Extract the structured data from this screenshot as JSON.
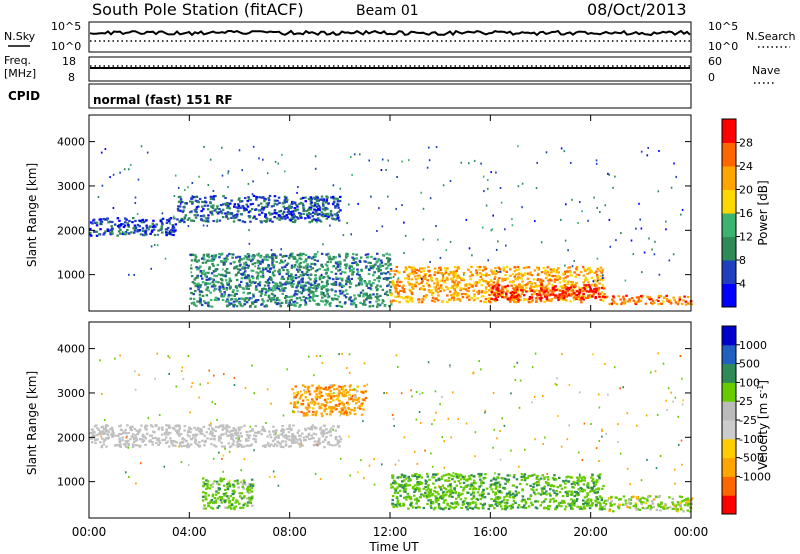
{
  "header": {
    "title": "South Pole Station (fitACF)",
    "beam": "Beam 01",
    "date": "08/Oct/2013"
  },
  "aux_panels": {
    "nsky": {
      "label": "N.Sky",
      "ticks": [
        "10^5",
        "10^0"
      ]
    },
    "nsearch": {
      "label": "N.Search",
      "ticks": [
        "10^5",
        "10^0"
      ]
    },
    "freq": {
      "label_line1": "Freq.",
      "label_line2": "[MHz]",
      "ticks": [
        "18",
        "8"
      ]
    },
    "nave": {
      "label": "Nave",
      "ticks": [
        "60",
        "0"
      ]
    },
    "cpid": {
      "label": "CPID",
      "value": "normal (fast) 151 RF"
    }
  },
  "colors": {
    "power_scale": [
      "#0000ff",
      "#1f3fbf",
      "#2e8b57",
      "#3cb371",
      "#ffd700",
      "#ffa500",
      "#ff6600",
      "#ff0000"
    ],
    "velocity_scale": [
      "#ff0000",
      "#ff6600",
      "#ffa500",
      "#ffcc00",
      "#cccccc",
      "#bbbbbb",
      "#66cc00",
      "#2e8b57",
      "#1f5fbf",
      "#0000cc"
    ],
    "ground_scatter": "#c0c0c0"
  },
  "chart_data": [
    {
      "type": "heatmap",
      "title": "",
      "xlabel": "Time UT",
      "ylabel": "Slant Range [km]",
      "xlim": [
        "00:00",
        "24:00"
      ],
      "ylim": [
        180,
        4600
      ],
      "x_ticks": [
        "00:00",
        "04:00",
        "08:00",
        "12:00",
        "16:00",
        "20:00",
        "00:00"
      ],
      "y_ticks": [
        1000,
        2000,
        3000,
        4000
      ],
      "colorbar": {
        "label": "Power [dB]",
        "range": [
          0,
          32
        ],
        "ticks": [
          4,
          8,
          12,
          16,
          20,
          24,
          28
        ]
      },
      "features": [
        {
          "name": "early F-region band",
          "x": [
            0,
            3.5
          ],
          "y": [
            1900,
            2300
          ],
          "level_db": 6
        },
        {
          "name": "morning oblique band",
          "x": [
            3.5,
            10
          ],
          "y": [
            2200,
            2800
          ],
          "level_db": 7
        },
        {
          "name": "low range echoes",
          "x": [
            4,
            12
          ],
          "y": [
            300,
            1500
          ],
          "level_db": 10
        },
        {
          "name": "afternoon main band",
          "x": [
            12,
            20.5
          ],
          "y": [
            400,
            1200
          ],
          "level_db": 22
        },
        {
          "name": "peak power patch",
          "x": [
            16,
            20.5
          ],
          "y": [
            450,
            800
          ],
          "level_db": 30
        },
        {
          "name": "late low band",
          "x": [
            20.5,
            24
          ],
          "y": [
            350,
            550
          ],
          "level_db": 24
        }
      ]
    },
    {
      "type": "heatmap",
      "title": "",
      "xlabel": "Time UT",
      "ylabel": "Slant Range [km]",
      "xlim": [
        "00:00",
        "24:00"
      ],
      "ylim": [
        180,
        4600
      ],
      "x_ticks": [
        "00:00",
        "04:00",
        "08:00",
        "12:00",
        "16:00",
        "20:00",
        "00:00"
      ],
      "y_ticks": [
        1000,
        2000,
        3000,
        4000
      ],
      "colorbar": {
        "label": "Velocity [m s^-1]",
        "ticks": [
          1000,
          500,
          100,
          25,
          -25,
          -100,
          -500,
          -1000
        ]
      },
      "features": [
        {
          "name": "ground scatter band",
          "x": [
            0,
            10
          ],
          "y": [
            1800,
            2300
          ],
          "velocity": 0
        },
        {
          "name": "morning green patches",
          "x": [
            4.5,
            6.5
          ],
          "y": [
            400,
            1100
          ],
          "velocity": 300
        },
        {
          "name": "orange patches",
          "x": [
            8,
            11
          ],
          "y": [
            2500,
            3200
          ],
          "velocity": -300
        },
        {
          "name": "afternoon mixed band",
          "x": [
            12,
            20.5
          ],
          "y": [
            400,
            1200
          ],
          "velocity": 400
        },
        {
          "name": "late green band",
          "x": [
            20.5,
            24
          ],
          "y": [
            350,
            700
          ],
          "velocity": 150
        }
      ]
    }
  ]
}
